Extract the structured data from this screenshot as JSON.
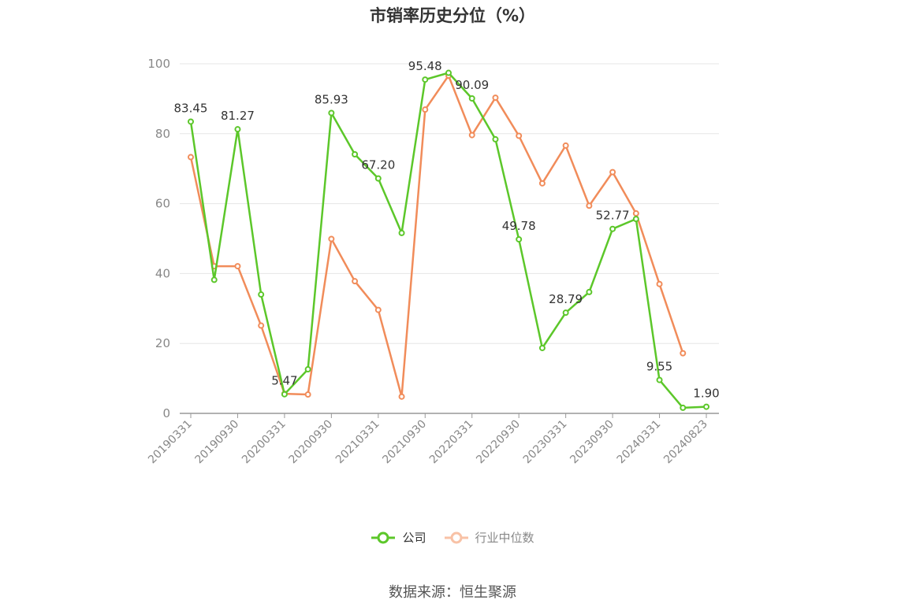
{
  "chart_data": {
    "type": "line",
    "title": "市销率历史分位（%）",
    "ylim": [
      0,
      100
    ],
    "yticks": [
      0,
      20,
      40,
      60,
      80,
      100
    ],
    "x_tick_labels": [
      "20190331",
      "20190930",
      "20200331",
      "20200930",
      "20210331",
      "20210930",
      "20220331",
      "20220930",
      "20230331",
      "20230930",
      "20240331",
      "20240823"
    ],
    "x_tick_positions": [
      0,
      2,
      4,
      6,
      8,
      10,
      12,
      14,
      16,
      18,
      20,
      22
    ],
    "grid": true,
    "legend_position": "bottom",
    "series": [
      {
        "name": "公司",
        "color": "#5cc72a",
        "values": [
          83.45,
          38.2,
          81.27,
          34.0,
          5.47,
          12.6,
          85.93,
          74.1,
          67.2,
          51.6,
          95.48,
          97.4,
          90.09,
          78.4,
          49.78,
          18.7,
          28.79,
          34.7,
          52.77,
          55.6,
          9.55,
          1.6,
          1.9
        ],
        "labels": {
          "0": "83.45",
          "2": "81.27",
          "4": "5.47",
          "6": "85.93",
          "8": "67.20",
          "10": "95.48",
          "12": "90.09",
          "14": "49.78",
          "16": "28.79",
          "18": "52.77",
          "20": "9.55",
          "22": "1.90"
        }
      },
      {
        "name": "行业中位数",
        "color": "#f18c5a",
        "values": [
          73.3,
          42.1,
          42.1,
          25.1,
          5.6,
          5.4,
          49.9,
          37.8,
          29.6,
          4.8,
          86.9,
          96.6,
          79.6,
          90.3,
          79.4,
          65.8,
          76.6,
          59.4,
          69.0,
          57.2,
          37.0,
          17.2,
          null
        ]
      }
    ]
  },
  "source": "数据来源：恒生聚源"
}
